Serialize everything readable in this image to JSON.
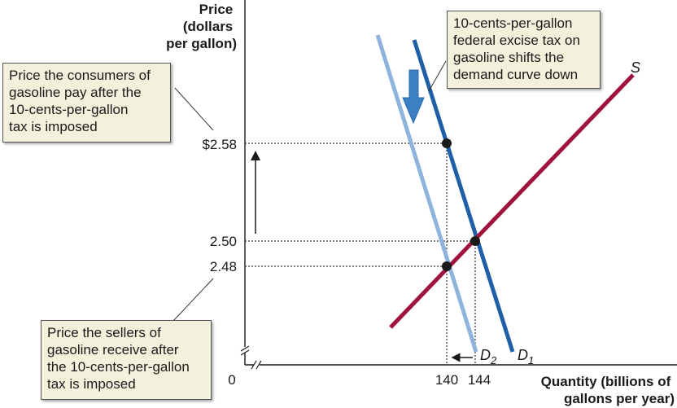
{
  "chart_data": {
    "type": "line",
    "ylabel": "Price\n(dollars\nper gallon)",
    "xlabel": "Quantity (billions of\ngallons per year)",
    "origin_label": "0",
    "y_ticks": [
      "$2.58",
      "2.50",
      "2.48"
    ],
    "y_tick_values": [
      2.58,
      2.5,
      2.48
    ],
    "x_ticks": [
      "140",
      "144"
    ],
    "x_tick_values": [
      140,
      144
    ],
    "series": [
      {
        "name": "S",
        "color": "#a0143c"
      },
      {
        "name": "D1",
        "label_main": "D",
        "label_sub": "1",
        "color": "#1f5fa8"
      },
      {
        "name": "D2",
        "label_main": "D",
        "label_sub": "2",
        "color": "#8eb3dd"
      }
    ],
    "points": [
      {
        "x": 144,
        "y": 2.5,
        "label": "equilibrium before tax"
      },
      {
        "x": 140,
        "y": 2.58,
        "label": "consumer price after tax"
      },
      {
        "x": 140,
        "y": 2.48,
        "label": "seller price after tax"
      }
    ],
    "annotations": [
      "10-cents-per-gallon\nfederal excise tax on\ngasoline shifts the\ndemand curve down",
      "Price the consumers of\ngasoline pay after the\n10-cents-per-gallon\ntax is imposed",
      "Price the sellers of\ngasoline receive after\nthe 10-cents-per-gallon\ntax is imposed"
    ],
    "axis_break": true,
    "grid": false
  }
}
